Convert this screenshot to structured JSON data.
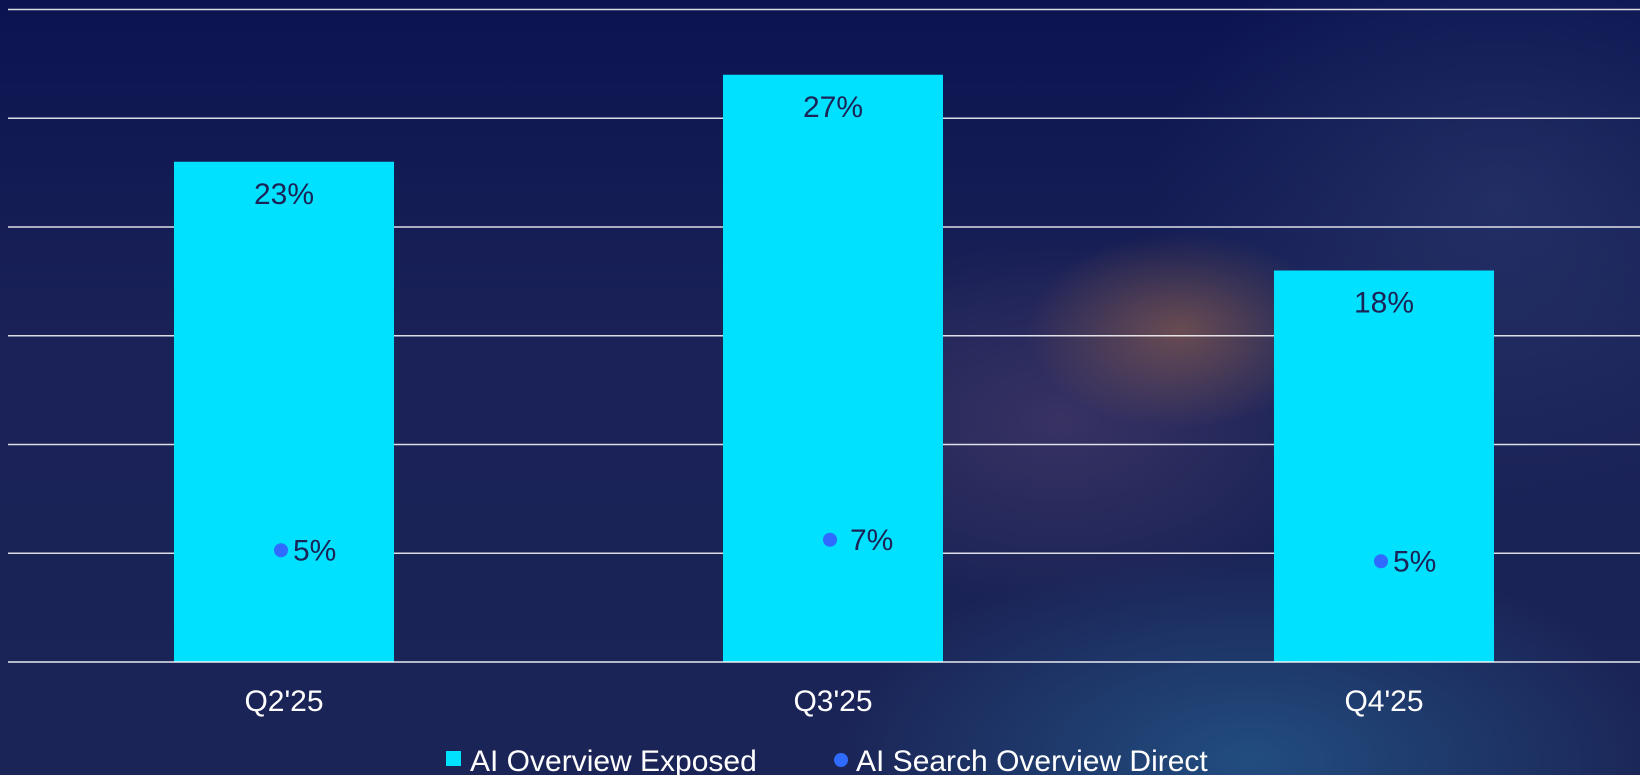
{
  "chart_data": {
    "type": "bar",
    "categories": [
      "Q2'25",
      "Q3'25",
      "Q4'25"
    ],
    "series": [
      {
        "name": "AI Overview Exposed",
        "type": "bar",
        "values": [
          23,
          27,
          18
        ],
        "labels": [
          "23%",
          "27%",
          "18%"
        ],
        "color": "#00e1ff"
      },
      {
        "name": "AI Search Overview Direct",
        "type": "scatter",
        "values": [
          5,
          7,
          5
        ],
        "labels": [
          "5%",
          "7%",
          "5%"
        ],
        "color": "#2f6bff"
      }
    ],
    "ylim": [
      0,
      30
    ],
    "grid": true,
    "legend": "bottom"
  }
}
